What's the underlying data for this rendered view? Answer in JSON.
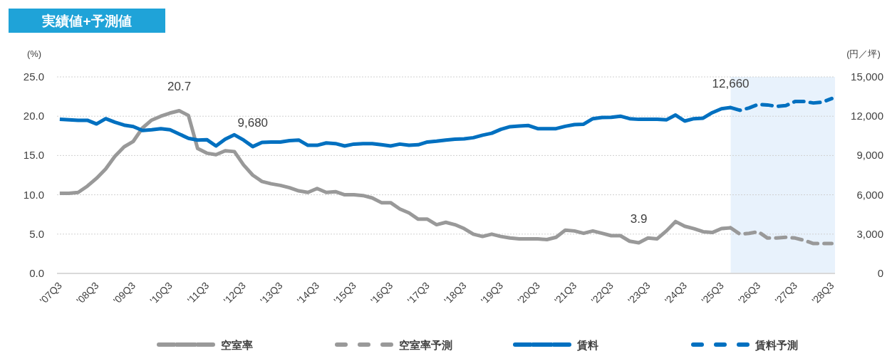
{
  "chart_data": {
    "type": "line",
    "title": "実績値+予測値",
    "ylabel": "(%)",
    "y2label": "(円／坪)",
    "categories": [
      "'07Q3",
      null,
      null,
      null,
      "'08Q3",
      null,
      null,
      null,
      "'09Q3",
      null,
      null,
      null,
      "'10Q3",
      null,
      null,
      null,
      "'11Q3",
      null,
      null,
      null,
      "'12Q3",
      null,
      null,
      null,
      "'13Q3",
      null,
      null,
      null,
      "'14Q3",
      null,
      null,
      null,
      "'15Q3",
      null,
      null,
      null,
      "'16Q3",
      null,
      null,
      null,
      "'17Q3",
      null,
      null,
      null,
      "'18Q3",
      null,
      null,
      null,
      "'19Q3",
      null,
      null,
      null,
      "'20Q3",
      null,
      null,
      null,
      "'21Q3",
      null,
      null,
      null,
      "'22Q3",
      null,
      null,
      null,
      "'23Q3",
      null,
      null,
      null,
      "'24Q3",
      null,
      null,
      null,
      "'25Q3",
      null,
      null,
      null,
      "'26Q3",
      null,
      null,
      null,
      "'27Q3",
      null,
      null,
      null,
      "'28Q3"
    ],
    "series": [
      {
        "name": "空室率",
        "color": "#999999",
        "line_style": "solid",
        "values": [
          10.2,
          10.2,
          10.3,
          11.1,
          12.1,
          13.3,
          14.9,
          16.1,
          16.8,
          18.5,
          19.5,
          20.0,
          20.4,
          20.7,
          20.1,
          15.9,
          15.3,
          15.1,
          15.6,
          15.5,
          13.8,
          12.5,
          11.7,
          11.4,
          11.2,
          10.9,
          10.5,
          10.3,
          10.8,
          10.3,
          10.4,
          10.0,
          10.0,
          9.9,
          9.6,
          9.0,
          9.0,
          8.2,
          7.7,
          6.9,
          6.9,
          6.2,
          6.5,
          6.2,
          5.7,
          5.0,
          4.7,
          5.0,
          4.7,
          4.5,
          4.4,
          4.4,
          4.4,
          4.3,
          4.6,
          5.5,
          5.4,
          5.1,
          5.4,
          5.1,
          4.8,
          4.8,
          4.1,
          3.9,
          4.5,
          4.4,
          5.4,
          6.6,
          6.0,
          5.7,
          5.3,
          5.2,
          5.7,
          5.8,
          null,
          null,
          null,
          null,
          null,
          null,
          null,
          null,
          null,
          null,
          null
        ],
        "value_labels": [
          null,
          null,
          null,
          null,
          null,
          null,
          null,
          null,
          null,
          null,
          null,
          null,
          null,
          "20.7",
          null,
          null,
          null,
          null,
          null,
          null,
          null,
          null,
          null,
          null,
          null,
          null,
          null,
          null,
          null,
          null,
          null,
          null,
          null,
          null,
          null,
          null,
          null,
          null,
          null,
          null,
          null,
          null,
          null,
          null,
          null,
          null,
          null,
          null,
          null,
          null,
          null,
          null,
          null,
          null,
          null,
          null,
          null,
          null,
          null,
          null,
          null,
          null,
          null,
          "3.9",
          null,
          null,
          null,
          null,
          null,
          null,
          null,
          null,
          null,
          null,
          null,
          null,
          null,
          null,
          null,
          null,
          null,
          null,
          null,
          null,
          null
        ]
      },
      {
        "name": "空室率予測",
        "color": "#999999",
        "line_style": "dashed",
        "values": [
          null,
          null,
          null,
          null,
          null,
          null,
          null,
          null,
          null,
          null,
          null,
          null,
          null,
          null,
          null,
          null,
          null,
          null,
          null,
          null,
          null,
          null,
          null,
          null,
          null,
          null,
          null,
          null,
          null,
          null,
          null,
          null,
          null,
          null,
          null,
          null,
          null,
          null,
          null,
          null,
          null,
          null,
          null,
          null,
          null,
          null,
          null,
          null,
          null,
          null,
          null,
          null,
          null,
          null,
          null,
          null,
          null,
          null,
          null,
          null,
          null,
          null,
          null,
          null,
          null,
          null,
          null,
          null,
          null,
          null,
          null,
          null,
          null,
          5.8,
          5.0,
          5.1,
          5.3,
          4.5,
          4.5,
          4.6,
          4.5,
          4.2,
          3.8,
          3.8,
          3.8
        ]
      },
      {
        "name": "賃料",
        "color": "#0070c0",
        "line_style": "solid",
        "axis": "y2",
        "values": [
          11760,
          11720,
          11690,
          11690,
          11410,
          11810,
          11540,
          11320,
          11210,
          10910,
          10960,
          11050,
          10960,
          10640,
          10310,
          10180,
          10210,
          9730,
          10240,
          10580,
          10180,
          9680,
          10000,
          10030,
          10030,
          10140,
          10180,
          9780,
          9780,
          9960,
          9910,
          9730,
          9870,
          9910,
          9910,
          9820,
          9730,
          9870,
          9780,
          9820,
          10030,
          10090,
          10180,
          10240,
          10270,
          10360,
          10550,
          10700,
          11000,
          11200,
          11250,
          11290,
          11050,
          11050,
          11050,
          11230,
          11360,
          11390,
          11810,
          11900,
          11920,
          12000,
          11810,
          11760,
          11760,
          11760,
          11720,
          12090,
          11630,
          11810,
          11850,
          12270,
          12570,
          12660,
          null,
          null,
          null,
          null,
          null,
          null,
          null,
          null,
          null,
          null,
          null
        ],
        "value_labels": [
          null,
          null,
          null,
          null,
          null,
          null,
          null,
          null,
          null,
          null,
          null,
          null,
          null,
          null,
          null,
          null,
          null,
          null,
          null,
          null,
          null,
          "9,680",
          null,
          null,
          null,
          null,
          null,
          null,
          null,
          null,
          null,
          null,
          null,
          null,
          null,
          null,
          null,
          null,
          null,
          null,
          null,
          null,
          null,
          null,
          null,
          null,
          null,
          null,
          null,
          null,
          null,
          null,
          null,
          null,
          null,
          null,
          null,
          null,
          null,
          null,
          null,
          null,
          null,
          null,
          null,
          null,
          null,
          null,
          null,
          null,
          null,
          null,
          null,
          "12,660",
          null,
          null,
          null,
          null,
          null,
          null,
          null,
          null,
          null,
          null,
          null
        ]
      },
      {
        "name": "賃料予測",
        "color": "#0070c0",
        "line_style": "dashed",
        "axis": "y2",
        "values": [
          null,
          null,
          null,
          null,
          null,
          null,
          null,
          null,
          null,
          null,
          null,
          null,
          null,
          null,
          null,
          null,
          null,
          null,
          null,
          null,
          null,
          null,
          null,
          null,
          null,
          null,
          null,
          null,
          null,
          null,
          null,
          null,
          null,
          null,
          null,
          null,
          null,
          null,
          null,
          null,
          null,
          null,
          null,
          null,
          null,
          null,
          null,
          null,
          null,
          null,
          null,
          null,
          null,
          null,
          null,
          null,
          null,
          null,
          null,
          null,
          null,
          null,
          null,
          null,
          null,
          null,
          null,
          null,
          null,
          null,
          null,
          null,
          null,
          12660,
          12450,
          12630,
          12900,
          12860,
          12750,
          12810,
          13120,
          13120,
          13010,
          13080,
          13350
        ]
      }
    ],
    "ylim": [
      0,
      25
    ],
    "yticks": [
      {
        "value": 0,
        "label": "0.0"
      },
      {
        "value": 5,
        "label": "5.0"
      },
      {
        "value": 10,
        "label": "10.0"
      },
      {
        "value": 15,
        "label": "15.0"
      },
      {
        "value": 20,
        "label": "20.0"
      },
      {
        "value": 25,
        "label": "25.0"
      }
    ],
    "y2lim": [
      0,
      15000
    ],
    "y2ticks": [
      0,
      {
        "value": 3000,
        "label": "3,000"
      },
      {
        "value": 6000,
        "label": "6,000"
      },
      {
        "value": 9000,
        "label": "9,000"
      },
      {
        "value": 12000,
        "label": "12,000"
      },
      {
        "value": 15000,
        "label": "15,000"
      }
    ],
    "grid": "y",
    "legend": "bottom"
  }
}
